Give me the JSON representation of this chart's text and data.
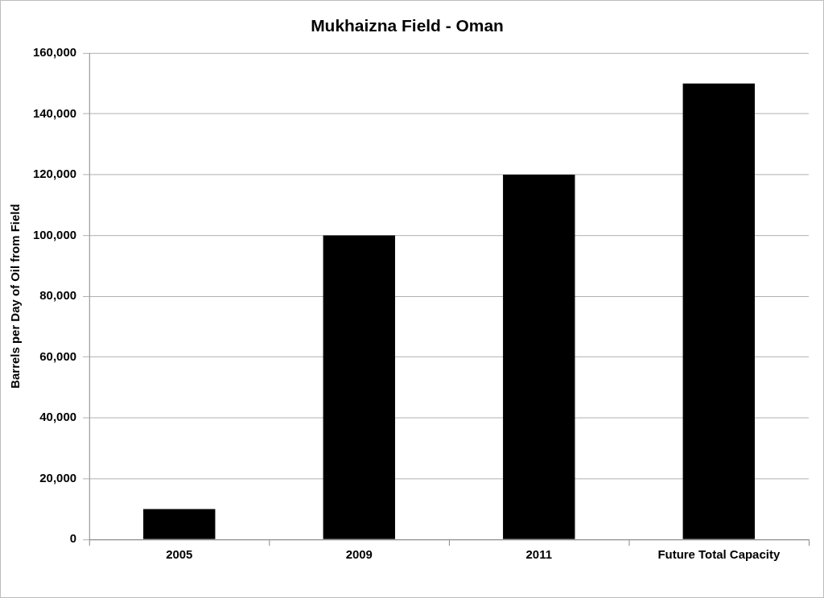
{
  "chart_data": {
    "type": "bar",
    "title": "Mukhaizna Field - Oman",
    "ylabel": "Barrels per Day of Oil from Field",
    "categories": [
      "2005",
      "2009",
      "2011",
      "Future Total Capacity"
    ],
    "values": [
      10000,
      100000,
      120000,
      150000
    ],
    "color": "#000000",
    "ylim": [
      0,
      160000
    ],
    "yticks": [
      {
        "value": 0,
        "label": "0"
      },
      {
        "value": 20000,
        "label": "20,000"
      },
      {
        "value": 40000,
        "label": "40,000"
      },
      {
        "value": 60000,
        "label": "60,000"
      },
      {
        "value": 80000,
        "label": "80,000"
      },
      {
        "value": 100000,
        "label": "100,000"
      },
      {
        "value": 120000,
        "label": "120,000"
      },
      {
        "value": 140000,
        "label": "140,000"
      },
      {
        "value": 160000,
        "label": "160,000"
      }
    ],
    "grid": "y",
    "legend": false
  }
}
